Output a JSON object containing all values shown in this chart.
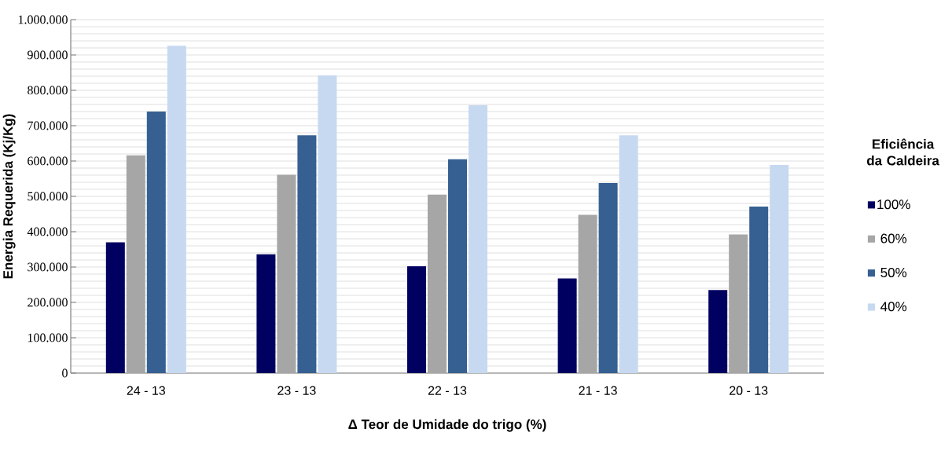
{
  "chart_data": {
    "type": "bar",
    "xlabel": "Δ Teor de Umidade do trigo (%)",
    "ylabel": "Energia Requerida (Kj/Kg)",
    "legend_title": "Eficiência da Caldeira",
    "categories": [
      "24 - 13",
      "23 - 13",
      "22 - 13",
      "21 - 13",
      "20 - 13"
    ],
    "series": [
      {
        "name": "100%",
        "color": "#000060",
        "values": [
          370000,
          336000,
          302000,
          268000,
          235000
        ]
      },
      {
        "name": "60%",
        "color": "#a6a6a6",
        "values": [
          616000,
          561000,
          505000,
          448000,
          392000
        ]
      },
      {
        "name": "50%",
        "color": "#366092",
        "values": [
          740000,
          673000,
          605000,
          538000,
          471000
        ]
      },
      {
        "name": "40%",
        "color": "#c6d9f0",
        "values": [
          926000,
          842000,
          758000,
          673000,
          589000
        ]
      }
    ],
    "ylim": [
      0,
      1000000
    ],
    "yticks": [
      0,
      {
        "value": 100000,
        "label": "100.000"
      },
      {
        "value": 200000,
        "label": "200.000"
      },
      {
        "value": 300000,
        "label": "300.000"
      },
      {
        "value": 400000,
        "label": "400.000"
      },
      {
        "value": 500000,
        "label": "500.000"
      },
      {
        "value": 600000,
        "label": "600.000"
      },
      {
        "value": 700000,
        "label": "700.000"
      },
      {
        "value": 800000,
        "label": "800.000"
      },
      {
        "value": 900000,
        "label": "900.000"
      },
      {
        "value": 1000000,
        "label": "1.000.000"
      }
    ],
    "grid": "y",
    "legend": "right"
  }
}
